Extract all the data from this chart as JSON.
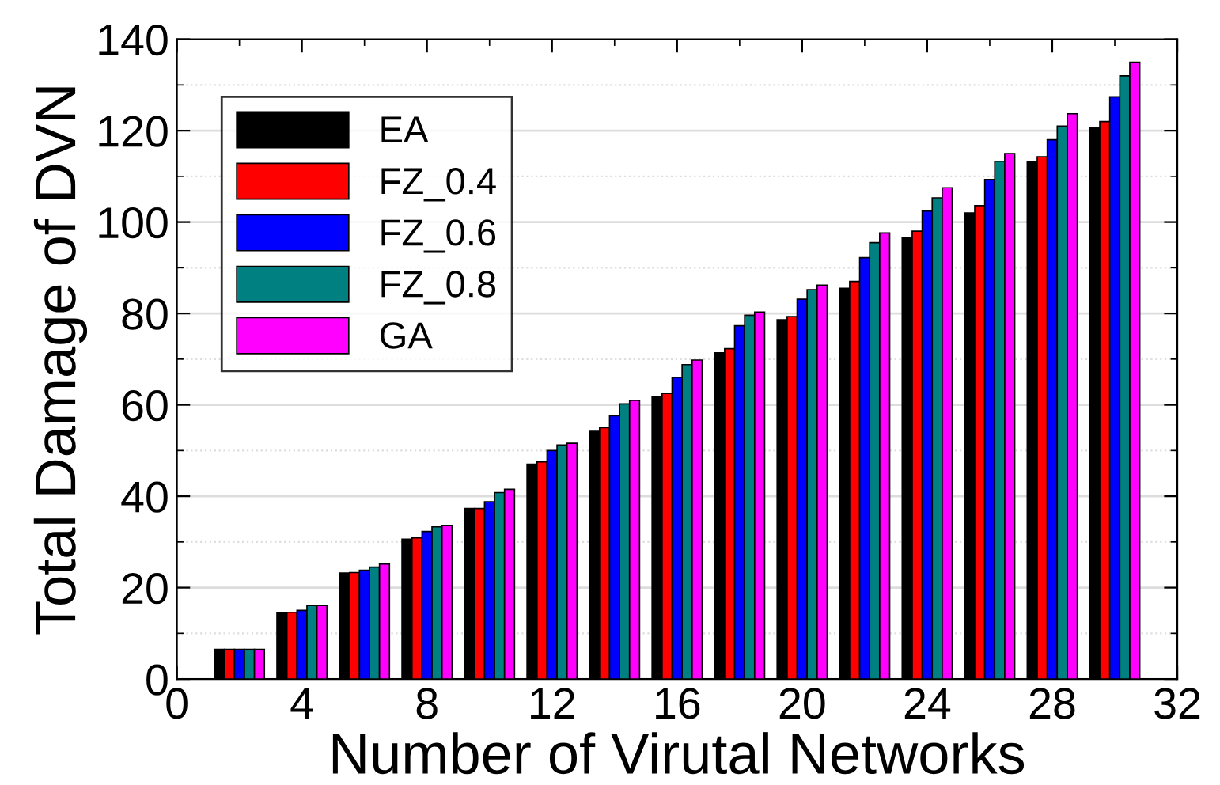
{
  "chart_data": {
    "type": "bar",
    "xlabel": "Number of Virutal Networks",
    "ylabel": "Total Damage of DVN",
    "x": [
      2,
      4,
      6,
      8,
      10,
      12,
      14,
      16,
      18,
      20,
      22,
      24,
      26,
      28,
      30
    ],
    "series": [
      {
        "name": "EA",
        "color": "#000000",
        "values": [
          6.5,
          14.6,
          23.2,
          30.6,
          37.3,
          47,
          54.2,
          61.8,
          71.4,
          78.6,
          85.5,
          96.5,
          102,
          113.2,
          120.6
        ]
      },
      {
        "name": "FZ_0.4",
        "color": "#ff0000",
        "values": [
          6.5,
          14.6,
          23.3,
          30.9,
          37.3,
          47.5,
          55,
          62.5,
          72.3,
          79.3,
          87,
          98,
          103.6,
          114.3,
          122
        ]
      },
      {
        "name": "FZ_0.6",
        "color": "#0000ff",
        "values": [
          6.5,
          15,
          23.8,
          32.3,
          38.8,
          50,
          57.6,
          66,
          77.3,
          83.1,
          92.2,
          102.4,
          109.3,
          118,
          127.4
        ]
      },
      {
        "name": "FZ_0.8",
        "color": "#008080",
        "values": [
          6.5,
          16.1,
          24.5,
          33.3,
          40.8,
          51.2,
          60.2,
          68.8,
          79.6,
          85.2,
          95.5,
          105.3,
          113.3,
          121,
          132
        ]
      },
      {
        "name": "GA",
        "color": "#ff00ff",
        "values": [
          6.5,
          16.1,
          25.2,
          33.6,
          41.5,
          51.6,
          61,
          69.8,
          80.3,
          86.2,
          97.6,
          107.5,
          115,
          123.7,
          135
        ]
      }
    ],
    "xlim": [
      0,
      32
    ],
    "xticks": [
      0,
      4,
      8,
      12,
      16,
      20,
      24,
      28,
      32
    ],
    "ylim": [
      0,
      140
    ],
    "yticks": [
      0,
      20,
      40,
      60,
      80,
      100,
      120,
      140
    ],
    "grid": "y",
    "legend": "top left"
  }
}
